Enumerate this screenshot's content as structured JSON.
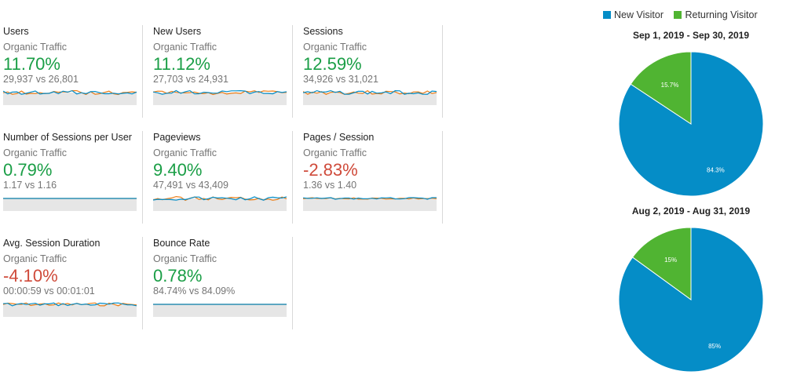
{
  "metrics": [
    {
      "title": "Users",
      "segment": "Organic Traffic",
      "change": "11.70%",
      "direction": "positive",
      "comparison": "29,937 vs 26,801"
    },
    {
      "title": "New Users",
      "segment": "Organic Traffic",
      "change": "11.12%",
      "direction": "positive",
      "comparison": "27,703 vs 24,931"
    },
    {
      "title": "Sessions",
      "segment": "Organic Traffic",
      "change": "12.59%",
      "direction": "positive",
      "comparison": "34,926 vs 31,021"
    },
    {
      "title": "Number of Sessions per User",
      "segment": "Organic Traffic",
      "change": "0.79%",
      "direction": "positive",
      "comparison": "1.17 vs 1.16"
    },
    {
      "title": "Pageviews",
      "segment": "Organic Traffic",
      "change": "9.40%",
      "direction": "positive",
      "comparison": "47,491 vs 43,409"
    },
    {
      "title": "Pages / Session",
      "segment": "Organic Traffic",
      "change": "-2.83%",
      "direction": "negative",
      "comparison": "1.36 vs 1.40"
    },
    {
      "title": "Avg. Session Duration",
      "segment": "Organic Traffic",
      "change": "-4.10%",
      "direction": "negative",
      "comparison": "00:00:59 vs 00:01:01"
    },
    {
      "title": "Bounce Rate",
      "segment": "Organic Traffic",
      "change": "0.78%",
      "direction": "positive",
      "comparison": "84.74% vs 84.09%"
    }
  ],
  "legend": [
    {
      "label": "New Visitor",
      "color": "#058dc7"
    },
    {
      "label": "Returning Visitor",
      "color": "#50b432"
    }
  ],
  "chart_data": [
    {
      "type": "pie",
      "title": "Sep 1, 2019 - Sep 30, 2019",
      "categories": [
        "New Visitor",
        "Returning Visitor"
      ],
      "values": [
        84.3,
        15.7
      ],
      "labels": [
        "84.3%",
        "15.7%"
      ],
      "colors": [
        "#058dc7",
        "#50b432"
      ]
    },
    {
      "type": "pie",
      "title": "Aug 2, 2019 - Aug 31, 2019",
      "categories": [
        "New Visitor",
        "Returning Visitor"
      ],
      "values": [
        85,
        15
      ],
      "labels": [
        "85%",
        "15%"
      ],
      "colors": [
        "#058dc7",
        "#50b432"
      ]
    }
  ],
  "sparkline_colors": {
    "current": "#058dc7",
    "previous": "#ed7e17"
  }
}
